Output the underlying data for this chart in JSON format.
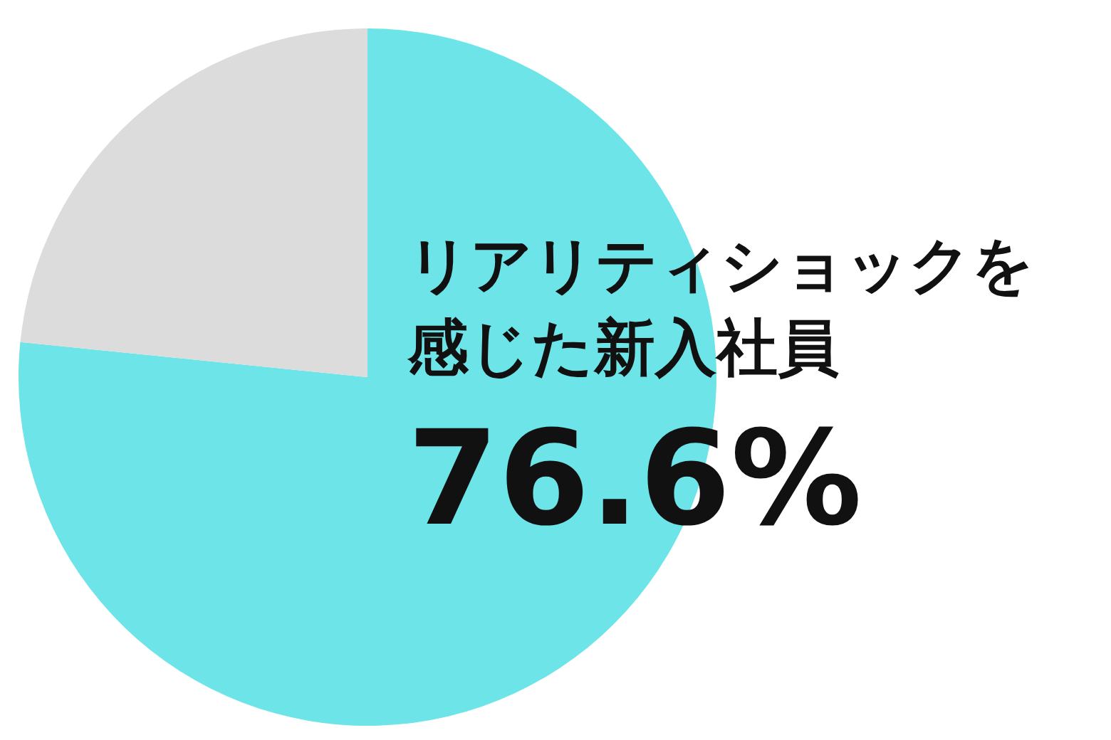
{
  "chart_data": {
    "type": "pie",
    "categories": [
      "リアリティショックを感じた新入社員",
      null
    ],
    "values": [
      76.6,
      23.4
    ],
    "colors": [
      "#6ce4e8",
      "#dcdcdc"
    ],
    "value_labels": [
      "76.6%",
      null
    ]
  }
}
